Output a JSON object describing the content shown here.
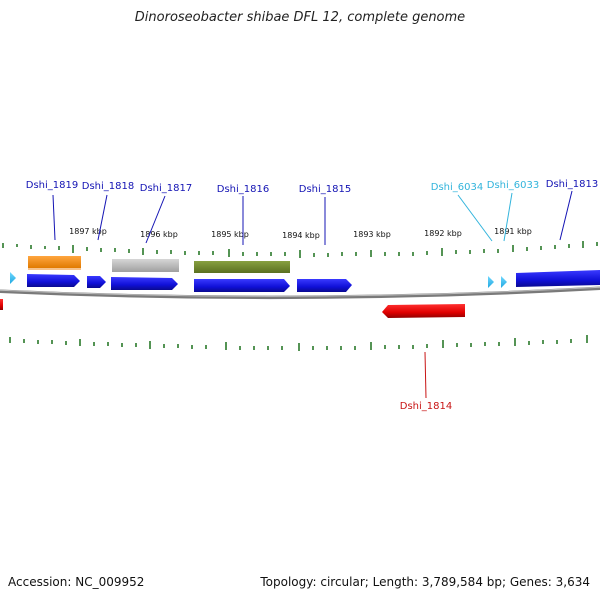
{
  "title": "Dinoroseobacter shibae DFL 12, complete genome",
  "footer": {
    "accession": "Accession: NC_009952",
    "summary": "Topology: circular; Length: 3,789,584 bp; Genes: 3,634"
  },
  "colors": {
    "cds": "#1414e6",
    "trna": "#f08c14",
    "pseudo": "#b4b4b4",
    "rrna": "#6e8c28",
    "reverse": "#e61414",
    "misc": "#3cc8f0",
    "tick": "#2a7a2a",
    "backbone": "#777777"
  },
  "ruler": [
    {
      "label": "1897 kbp"
    },
    {
      "label": "1896 kbp"
    },
    {
      "label": "1895 kbp"
    },
    {
      "label": "1894 kbp"
    },
    {
      "label": "1893 kbp"
    },
    {
      "label": "1892 kbp"
    },
    {
      "label": "1891 kbp"
    }
  ],
  "genes": [
    {
      "name": "Dshi_1819",
      "color": "#1414b4"
    },
    {
      "name": "Dshi_1818",
      "color": "#1414b4"
    },
    {
      "name": "Dshi_1817",
      "color": "#1414b4"
    },
    {
      "name": "Dshi_1816",
      "color": "#1414b4"
    },
    {
      "name": "Dshi_1815",
      "color": "#1414b4"
    },
    {
      "name": "Dshi_6034",
      "color": "#32b4dc"
    },
    {
      "name": "Dshi_6033",
      "color": "#32b4dc"
    },
    {
      "name": "Dshi_1813",
      "color": "#1414b4"
    },
    {
      "name": "Dshi_1814",
      "color": "#c81414"
    }
  ]
}
